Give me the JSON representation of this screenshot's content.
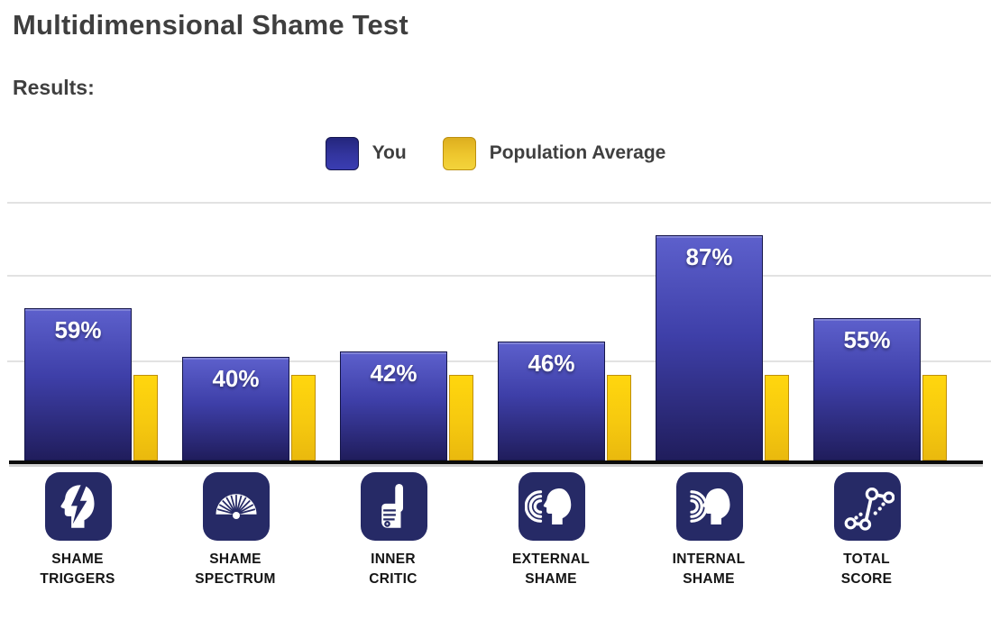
{
  "header": {
    "title": "Multidimensional Shame Test",
    "results_label": "Results:"
  },
  "legend": {
    "you": {
      "label": "You",
      "color": "#3a3db2"
    },
    "avg": {
      "label": "Population Average",
      "color": "#f3d43c"
    }
  },
  "colors": {
    "you_bar_top": "#5d60cc",
    "you_bar_bottom": "#201d5c",
    "avg_bar": "#f6c90f",
    "icon_tile": "#262a66",
    "baseline": "#0b0b0b",
    "gridline": "#e2e2e2",
    "heading_text": "#3f3f3f",
    "value_label_text": "#ffffff"
  },
  "chart_data": {
    "type": "bar",
    "title": "Multidimensional Shame Test",
    "xlabel": "",
    "ylabel": "",
    "ylim": [
      0,
      100
    ],
    "grid": true,
    "legend_position": "top",
    "value_suffix": "%",
    "categories": [
      "Shame Triggers",
      "Shame Spectrum",
      "Inner Critic",
      "External Shame",
      "Internal Shame",
      "Total Score"
    ],
    "category_labels": [
      [
        "SHAME",
        "TRIGGERS"
      ],
      [
        "SHAME",
        "SPECTRUM"
      ],
      [
        "INNER",
        "CRITIC"
      ],
      [
        "EXTERNAL",
        "SHAME"
      ],
      [
        "INTERNAL",
        "SHAME"
      ],
      [
        "TOTAL",
        "SCORE"
      ]
    ],
    "icons": [
      "head-lightning-icon",
      "folding-fan-icon",
      "pointing-finger-icon",
      "incoming-sound-head-icon",
      "radiating-sound-head-icon",
      "connected-dots-graph-icon"
    ],
    "series": [
      {
        "name": "You",
        "values": [
          59,
          40,
          42,
          46,
          87,
          55
        ]
      },
      {
        "name": "Population Average",
        "values": [
          33,
          33,
          33,
          33,
          33,
          33
        ]
      }
    ]
  }
}
